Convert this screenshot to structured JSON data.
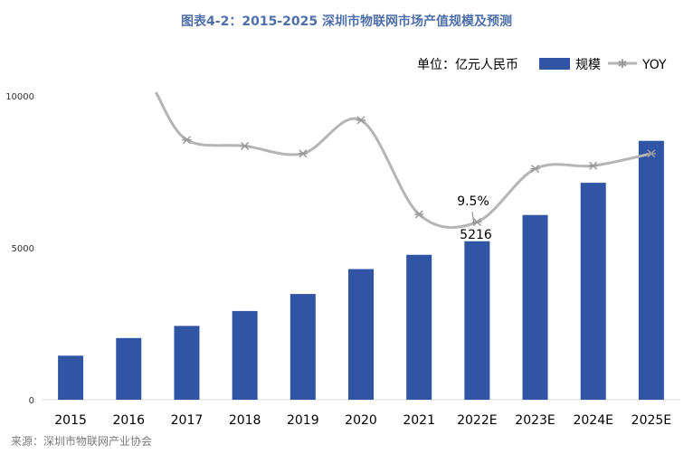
{
  "chart_data": {
    "type": "bar",
    "title": "图表4-2：2015-2025 深圳市物联网市场产值规模及预测",
    "unit_label": "单位：亿元人民币",
    "categories": [
      "2015",
      "2016",
      "2017",
      "2018",
      "2019",
      "2020",
      "2021",
      "2022E",
      "2023E",
      "2024E",
      "2025E"
    ],
    "series": [
      {
        "name": "规模",
        "type": "bar",
        "color": "#2f55a4",
        "values": [
          1450,
          2030,
          2430,
          2920,
          3480,
          4300,
          4770,
          5216,
          6080,
          7140,
          8520
        ]
      },
      {
        "name": "YOY",
        "type": "line",
        "color": "#b5b5b5",
        "values": [
          null,
          null,
          8550,
          8350,
          8100,
          9200,
          6100,
          5850,
          7600,
          7700,
          8100
        ]
      }
    ],
    "ylim": [
      0,
      10000
    ],
    "yticks": [
      "0",
      "5000",
      "10000"
    ],
    "annotations": {
      "yoy_label": "9.5%",
      "value_label": "5216"
    },
    "grid": false,
    "legend_position": "top-right",
    "source": "来源：深圳市物联网产业协会"
  }
}
